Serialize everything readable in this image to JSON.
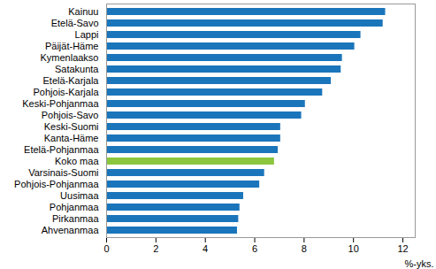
{
  "chart_data": {
    "type": "bar",
    "orientation": "horizontal",
    "categories": [
      "Kainuu",
      "Etelä-Savo",
      "Lappi",
      "Päijät-Häme",
      "Kymenlaakso",
      "Satakunta",
      "Etelä-Karjala",
      "Pohjois-Karjala",
      "Keski-Pohjanmaa",
      "Pohjois-Savo",
      "Keski-Suomi",
      "Kanta-Häme",
      "Etelä-Pohjanmaa",
      "Koko maa",
      "Varsinais-Suomi",
      "Pohjois-Pohjanmaa",
      "Uusimaa",
      "Pohjanmaa",
      "Pirkanmaa",
      "Ahvenanmaa"
    ],
    "values": [
      11.3,
      11.2,
      10.3,
      10.05,
      9.55,
      9.5,
      9.1,
      8.75,
      8.05,
      7.9,
      7.05,
      7.05,
      6.95,
      6.8,
      6.4,
      6.2,
      5.55,
      5.4,
      5.35,
      5.3
    ],
    "colors": [
      "#1b75bb",
      "#1b75bb",
      "#1b75bb",
      "#1b75bb",
      "#1b75bb",
      "#1b75bb",
      "#1b75bb",
      "#1b75bb",
      "#1b75bb",
      "#1b75bb",
      "#1b75bb",
      "#1b75bb",
      "#1b75bb",
      "#8cc63f",
      "#1b75bb",
      "#1b75bb",
      "#1b75bb",
      "#1b75bb",
      "#1b75bb",
      "#1b75bb"
    ],
    "x_label": "%-yks.",
    "xlim": [
      0,
      12.5
    ],
    "xticks": [
      0,
      2,
      4,
      6,
      8,
      10,
      12
    ],
    "grid": false
  }
}
